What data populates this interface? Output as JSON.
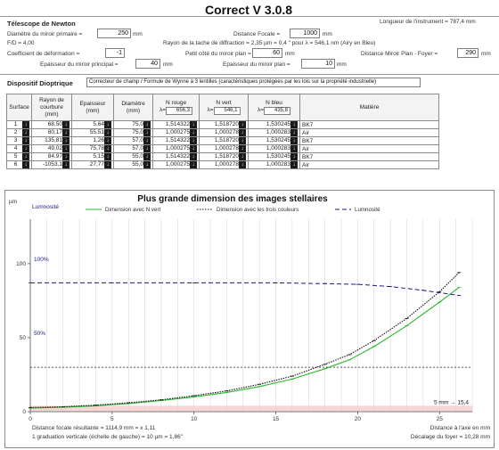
{
  "app": {
    "title": "Correct V 3.0.8"
  },
  "telescope": {
    "section_title": "Télescope de Newton",
    "diam_label": "Diamètre du miroir primaire =",
    "diam_value": "250",
    "diam_unit": "mm",
    "fd_label": "F/D = 4,00",
    "focal_label": "Distance Focale =",
    "focal_value": "1000",
    "focal_unit": "mm",
    "length_label": "Longueur de l'instrument = 787,4 mm",
    "deform_label": "Coefficient de déformation =",
    "deform_value": "-1",
    "radius_label": "Rayon de la tache de diffraction = 2,35 µm = 0,4 \" pour λ = 546,1 nm (Airy en Bleu)",
    "small_side_label": "Petit côté du miroir plan =",
    "small_side_value": "60",
    "small_side_unit": "mm",
    "plane_dist_label": "Distance Miroir Plan - Foyer =",
    "plane_dist_value": "290",
    "plane_dist_unit": "mm",
    "thick_primary_label": "Epaisseur du miroir principal =",
    "thick_primary_value": "40",
    "thick_primary_unit": "mm",
    "thick_plane_label": "Epaisseur du miroir plan =",
    "thick_plane_value": "10",
    "thick_plane_unit": "mm"
  },
  "dioptric": {
    "section_title": "Dispositif Dioptrique",
    "type_value": "Correcteur de champ / Formule de Wynne à 3 lentilles (caractéristiques protégées par les lois sur la propriété industrielle)",
    "headers": {
      "surface": "Surface",
      "radius": "Rayon de courbure (mm)",
      "thickness": "Epaisseur (mm)",
      "diameter": "Diamètre (mm)",
      "n_red": "N rouge",
      "n_green": "N vert",
      "n_blue": "N bleu",
      "material": "Matière",
      "lambda_red": "656,3",
      "lambda_green": "546,1",
      "lambda_blue": "435,8",
      "lambda_sym": "λ="
    },
    "rows": [
      {
        "idx": "1",
        "radius": "68,50",
        "thick": "5,64",
        "diam": "75,0",
        "nr": "1,514322",
        "ng": "1,518720",
        "nb": "1,530245",
        "mat": "BK7"
      },
      {
        "idx": "2",
        "radius": "80,17",
        "thick": "55,51",
        "diam": "75,0",
        "nr": "1,000275",
        "ng": "1,000278",
        "nb": "1,000283",
        "mat": "Air"
      },
      {
        "idx": "3",
        "radius": "135,81",
        "thick": "1,26",
        "diam": "57,0",
        "nr": "1,514322",
        "ng": "1,518720",
        "nb": "1,530245",
        "mat": "BK7"
      },
      {
        "idx": "4",
        "radius": "49,02",
        "thick": "75,78",
        "diam": "57,0",
        "nr": "1,000275",
        "ng": "1,000278",
        "nb": "1,000283",
        "mat": "Air"
      },
      {
        "idx": "5",
        "radius": "84,97",
        "thick": "5,15",
        "diam": "55,0",
        "nr": "1,514322",
        "ng": "1,518720",
        "nb": "1,530245",
        "mat": "BK7"
      },
      {
        "idx": "6",
        "radius": "-1053,1",
        "thick": "27,77",
        "diam": "55,0",
        "nr": "1,000275",
        "ng": "1,000278",
        "nb": "1,000283",
        "mat": "Air"
      }
    ]
  },
  "chart": {
    "y_unit": "µm",
    "luminosity_label": "Lumnosité",
    "pct_100": "100%",
    "pct_50": "50%",
    "bottom_left_1": "Distance focale résultante = 1114,9 mm = x 1,11",
    "bottom_left_2": "1 graduation verticale (échelle de gauche) = 10 µm = 1,86\"",
    "bottom_right_1": "Distance à l'axe en mm",
    "bottom_right_2": "Décalage du foyer = 10,28 mm",
    "right_value": "5 mm → 15,4"
  },
  "chart_data": {
    "type": "line",
    "title": "Plus grande dimension des images stellaires",
    "xlabel": "Distance à l'axe en mm",
    "ylabel": "µm",
    "xlim": [
      0,
      27
    ],
    "ylim": [
      0,
      130
    ],
    "x_ticks": [
      0,
      5,
      10,
      15,
      20,
      25
    ],
    "y_ticks": [
      0,
      50,
      100
    ],
    "legend": [
      "Dimension avec N vert",
      "Dimension avec les trois couleurs",
      "Lumnosité"
    ],
    "legend_position": "top",
    "series": [
      {
        "name": "Dimension avec N vert",
        "color": "#2db82d",
        "x": [
          0,
          2,
          4,
          6,
          8,
          10,
          12,
          14,
          16,
          18,
          19.5,
          21,
          23,
          25,
          26.2
        ],
        "y": [
          2.4,
          3,
          4,
          5.5,
          7.5,
          10,
          13,
          17,
          22,
          29,
          35,
          44,
          58,
          74,
          84
        ]
      },
      {
        "name": "Dimension avec les trois couleurs",
        "color": "#111111",
        "x": [
          0,
          2,
          4,
          6,
          8,
          10,
          12,
          14,
          16,
          18,
          19.5,
          21,
          23,
          25,
          26.2
        ],
        "y": [
          2.8,
          3.3,
          4.4,
          6,
          8,
          10.8,
          14,
          18.5,
          24,
          32,
          38.5,
          48,
          63,
          81,
          94
        ]
      },
      {
        "name": "Lumnosité",
        "color": "#1a1a8c",
        "x": [
          0,
          5,
          10,
          15,
          18,
          20,
          22,
          24,
          26.2
        ],
        "y": [
          87,
          87,
          87,
          87,
          86.5,
          86,
          84.5,
          82,
          78.5
        ]
      }
    ],
    "reference_line_y": 30
  }
}
